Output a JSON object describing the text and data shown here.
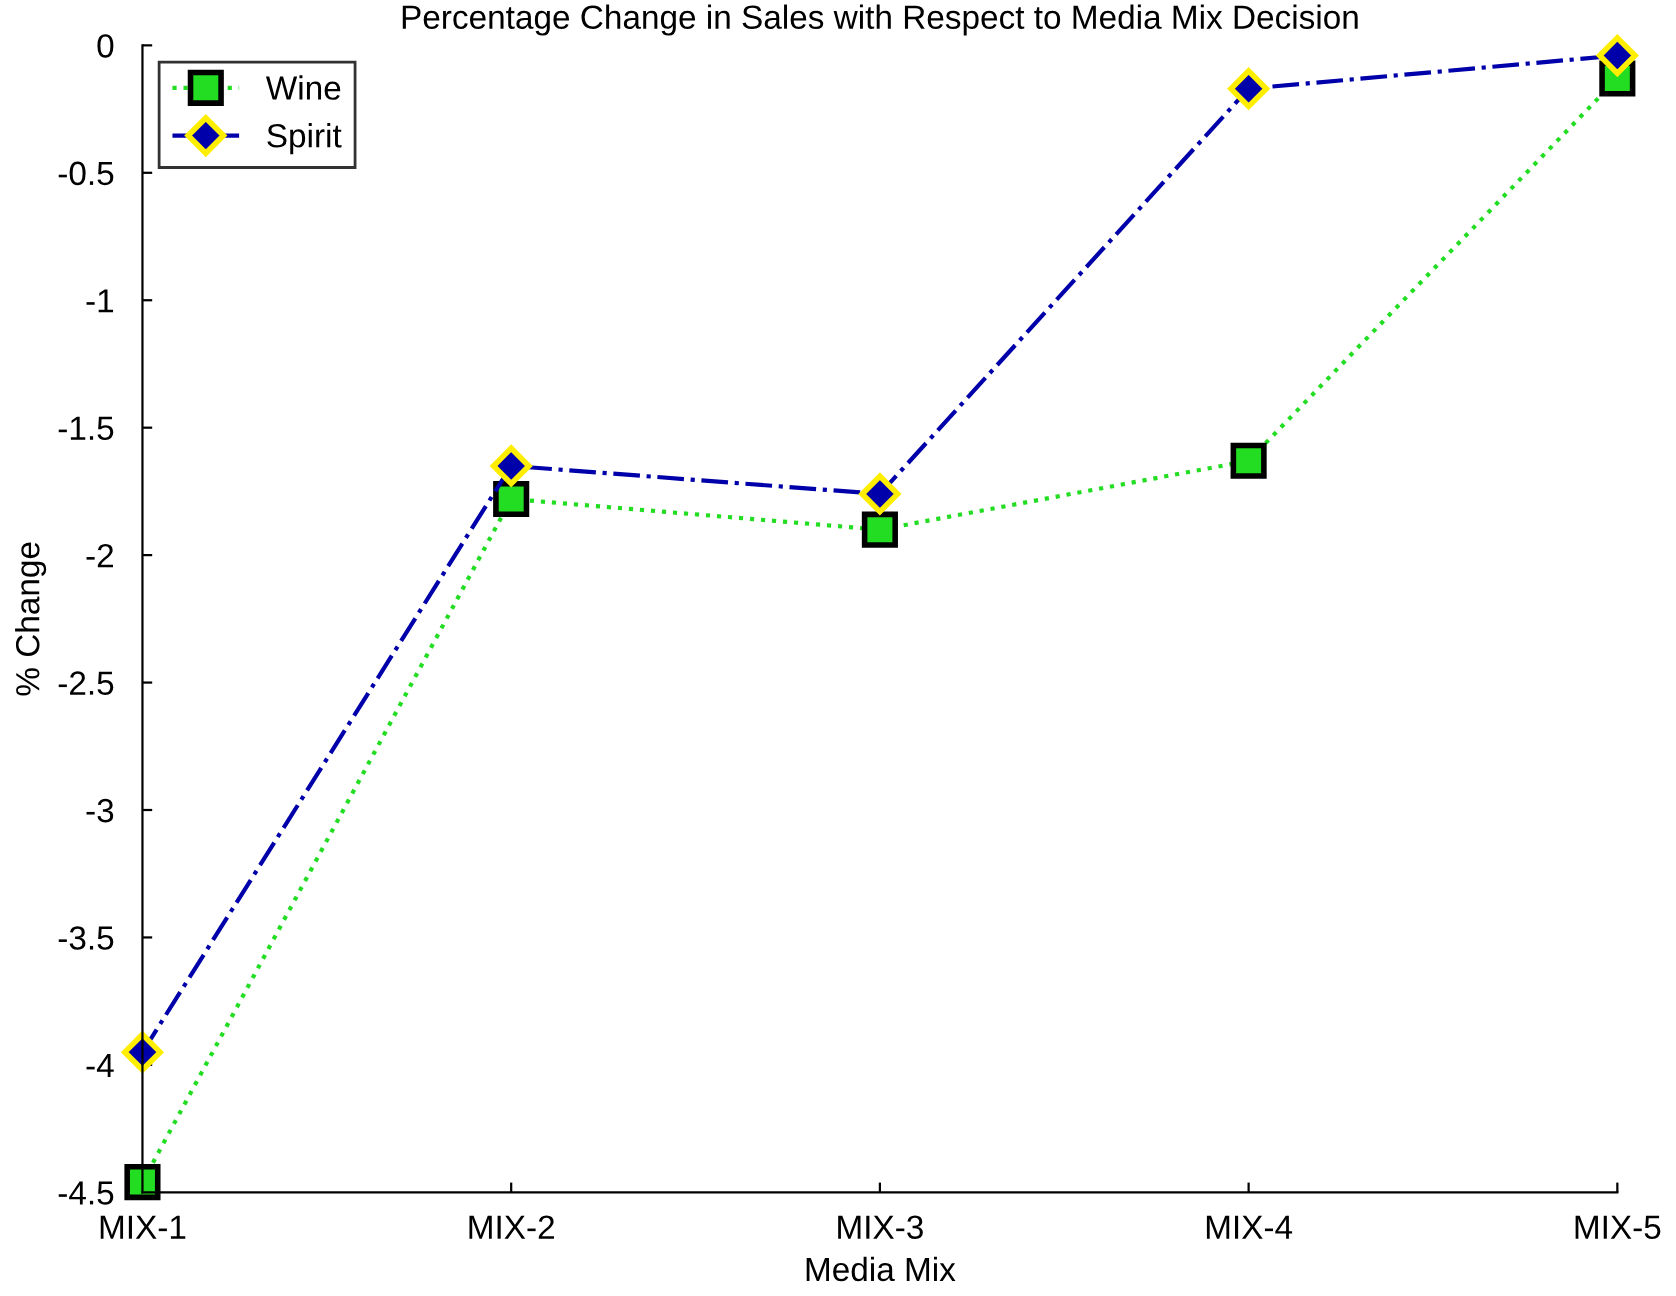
{
  "chart_data": {
    "type": "line",
    "title": "Percentage Change in Sales with Respect to Media Mix Decision",
    "xlabel": "Media Mix",
    "ylabel": "% Change",
    "categories": [
      "MIX-1",
      "MIX-2",
      "MIX-3",
      "MIX-4",
      "MIX-5"
    ],
    "series": [
      {
        "name": "Wine",
        "color": "#22dd22",
        "marker": "square",
        "line_style": "dotted",
        "values": [
          -4.46,
          -1.78,
          -1.9,
          -1.63,
          -0.13
        ]
      },
      {
        "name": "Spirit",
        "color": "#0000aa",
        "marker": "diamond",
        "line_style": "dashdot",
        "values": [
          -3.95,
          -1.65,
          -1.76,
          -0.17,
          -0.04
        ]
      }
    ],
    "ylim": [
      -4.5,
      0
    ],
    "yticks": [
      -4.5,
      -4,
      -3.5,
      -3,
      -2.5,
      -2,
      -1.5,
      -1,
      -0.5,
      0
    ],
    "grid": false,
    "legend": "top left"
  }
}
